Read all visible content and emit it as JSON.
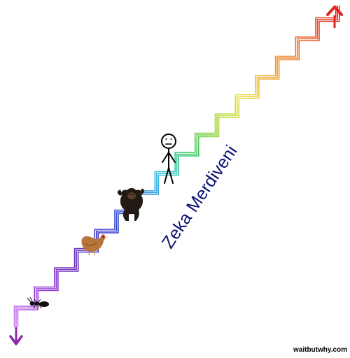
{
  "title": "Zeka Merdiveni",
  "credit": "waitbutwhy.com",
  "icons": {
    "arrow_top": "arrow-up-icon",
    "arrow_bottom": "arrow-down-icon",
    "creatures": [
      "ant-icon",
      "chicken-icon",
      "chimpanzee-icon",
      "stick-figure-human-icon"
    ]
  },
  "colors": {
    "title": "#0d1273",
    "credit": "#000000",
    "staircase_gradient": [
      "#d98cf5",
      "#9b3dd9",
      "#6a2eb5",
      "#3a34c8",
      "#2f6fd6",
      "#33c2e0",
      "#33c85a",
      "#a4d63a",
      "#e8e04a",
      "#f0a830",
      "#ef6a28",
      "#e02a24"
    ],
    "arrow_bottom": "#8a2aa8",
    "arrow_top": "#e0261e"
  }
}
